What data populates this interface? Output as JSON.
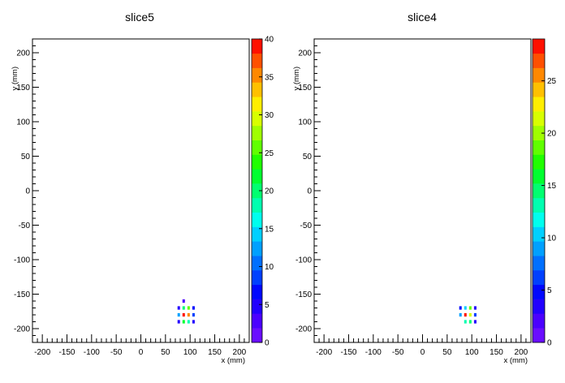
{
  "chart_data": [
    {
      "type": "heatmap",
      "title": "slice5",
      "xlabel": "x (mm)",
      "ylabel": "y (mm)",
      "xlim": [
        -220,
        220
      ],
      "ylim": [
        -220,
        220
      ],
      "x_ticks": [
        -200,
        -150,
        -100,
        -50,
        0,
        50,
        100,
        150,
        200
      ],
      "y_ticks": [
        -200,
        -150,
        -100,
        -50,
        0,
        50,
        100,
        150,
        200
      ],
      "z_range": [
        0,
        40
      ],
      "z_ticks": [
        0,
        5,
        10,
        15,
        20,
        25,
        30,
        35,
        40
      ],
      "cell_width": 5,
      "cell_height": 5,
      "cells": [
        {
          "x": 87,
          "y": -160,
          "z": 3
        },
        {
          "x": 77,
          "y": -170,
          "z": 4
        },
        {
          "x": 87,
          "y": -170,
          "z": 20
        },
        {
          "x": 97,
          "y": -170,
          "z": 25
        },
        {
          "x": 107,
          "y": -170,
          "z": 6
        },
        {
          "x": 77,
          "y": -180,
          "z": 12
        },
        {
          "x": 87,
          "y": -180,
          "z": 40
        },
        {
          "x": 97,
          "y": -180,
          "z": 36
        },
        {
          "x": 107,
          "y": -180,
          "z": 9
        },
        {
          "x": 77,
          "y": -190,
          "z": 4
        },
        {
          "x": 87,
          "y": -190,
          "z": 22
        },
        {
          "x": 97,
          "y": -190,
          "z": 18
        },
        {
          "x": 107,
          "y": -190,
          "z": 5
        }
      ]
    },
    {
      "type": "heatmap",
      "title": "slice4",
      "xlabel": "x (mm)",
      "ylabel": "y (mm)",
      "xlim": [
        -220,
        220
      ],
      "ylim": [
        -220,
        220
      ],
      "x_ticks": [
        -200,
        -150,
        -100,
        -50,
        0,
        50,
        100,
        150,
        200
      ],
      "y_ticks": [
        -200,
        -150,
        -100,
        -50,
        0,
        50,
        100,
        150,
        200
      ],
      "z_range": [
        0,
        29
      ],
      "z_ticks": [
        0,
        5,
        10,
        15,
        20,
        25
      ],
      "cell_width": 5,
      "cell_height": 5,
      "cells": [
        {
          "x": 77,
          "y": -170,
          "z": 5
        },
        {
          "x": 87,
          "y": -170,
          "z": 10
        },
        {
          "x": 97,
          "y": -170,
          "z": 18
        },
        {
          "x": 107,
          "y": -170,
          "z": 4
        },
        {
          "x": 77,
          "y": -180,
          "z": 9
        },
        {
          "x": 87,
          "y": -180,
          "z": 29
        },
        {
          "x": 97,
          "y": -180,
          "z": 22
        },
        {
          "x": 107,
          "y": -180,
          "z": 6
        },
        {
          "x": 87,
          "y": -190,
          "z": 13
        },
        {
          "x": 97,
          "y": -190,
          "z": 14
        },
        {
          "x": 107,
          "y": -190,
          "z": 4
        }
      ]
    }
  ],
  "palette": [
    "#6a0dff",
    "#4b00ff",
    "#2200ff",
    "#0008ff",
    "#0040ff",
    "#0070ff",
    "#00a0ff",
    "#00d0ff",
    "#00ffee",
    "#00ffb0",
    "#00ff70",
    "#00ff30",
    "#20ff00",
    "#60ff00",
    "#a0ff00",
    "#d8ff00",
    "#ffee00",
    "#ffc000",
    "#ff8800",
    "#ff5000",
    "#ff1000"
  ]
}
